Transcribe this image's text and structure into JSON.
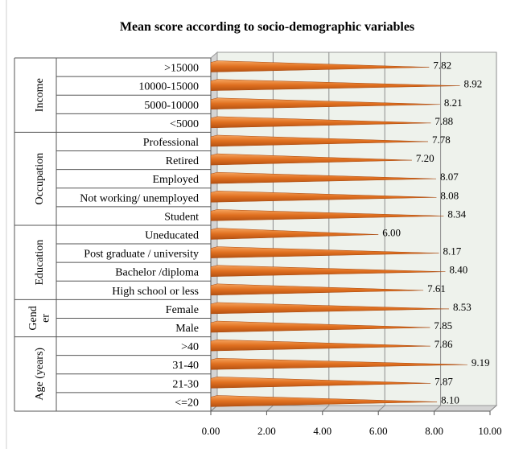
{
  "chart_data": {
    "type": "bar",
    "orientation": "horizontal",
    "title": "Mean score according to socio-demographic variables",
    "xlim": [
      0,
      10
    ],
    "xticks": [
      "0.00",
      "2.00",
      "4.00",
      "6.00",
      "8.00",
      "10.00"
    ],
    "grid": true,
    "bar_color": "#E07020",
    "groups": [
      {
        "name": "Income",
        "categories": [
          ">15000",
          "10000-15000",
          "5000-10000",
          "<5000"
        ],
        "values": [
          7.82,
          8.92,
          8.21,
          7.88
        ],
        "labels": [
          "7.82",
          "8.92",
          "8.21",
          "7.88"
        ]
      },
      {
        "name": "Occupation",
        "categories": [
          "Professional",
          "Retired",
          "Employed",
          "Not working/ unemployed",
          "Student"
        ],
        "values": [
          7.78,
          7.2,
          8.07,
          8.08,
          8.34
        ],
        "labels": [
          "7.78",
          "7.20",
          "8.07",
          "8.08",
          "8.34"
        ]
      },
      {
        "name": "Education",
        "categories": [
          "Uneducated",
          "Post graduate / university",
          "Bachelor /diploma",
          "High school or less"
        ],
        "values": [
          6.0,
          8.17,
          8.4,
          7.61
        ],
        "labels": [
          "6.00",
          "8.17",
          "8.40",
          "7.61"
        ]
      },
      {
        "name": "Gend\ner",
        "categories": [
          "Female",
          "Male"
        ],
        "values": [
          8.53,
          7.85
        ],
        "labels": [
          "8.53",
          "7.85"
        ]
      },
      {
        "name": "Age (years)",
        "categories": [
          ">40",
          "31-40",
          "21-30",
          "<=20"
        ],
        "values": [
          7.86,
          9.19,
          7.87,
          8.1
        ],
        "labels": [
          "7.86",
          "9.19",
          "7.87",
          "8.10"
        ]
      }
    ]
  }
}
